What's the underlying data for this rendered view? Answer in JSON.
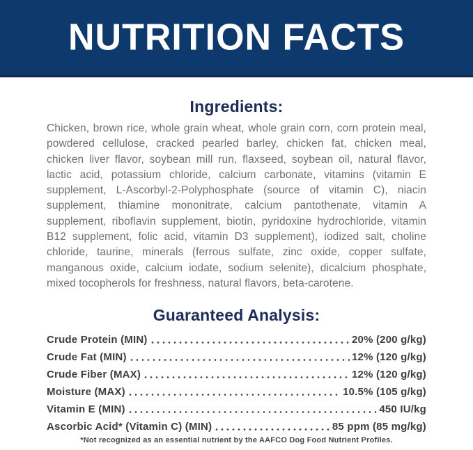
{
  "header": {
    "title": "NUTRITION FACTS"
  },
  "ingredients": {
    "heading": "Ingredients:",
    "text": "Chicken, brown rice, whole grain wheat, whole grain corn, corn protein meal, powdered cellulose, cracked pearled barley, chicken fat, chicken meal, chicken liver flavor, soybean mill run, flaxseed, soybean oil, natural flavor, lactic acid, potassium chloride, calcium carbonate, vitamins (vitamin E supplement, L-Ascorbyl-2-Polyphosphate (source of vitamin C), niacin supplement, thiamine mononitrate, calcium pantothenate, vitamin A supplement, riboflavin supplement, biotin, pyridoxine hydrochloride, vitamin B12 supplement, folic acid, vitamin D3 supplement), iodized salt, choline chloride, taurine, minerals (ferrous sulfate, zinc oxide, copper sulfate, manganous oxide, calcium iodate, sodium selenite), dicalcium phosphate, mixed tocopherols for freshness, natural flavors, beta-carotene."
  },
  "guaranteed_analysis": {
    "heading": "Guaranteed Analysis:",
    "rows": [
      {
        "label": "Crude Protein (MIN)",
        "value": "20% (200 g/kg)"
      },
      {
        "label": "Crude Fat (MIN)",
        "value": "12% (120 g/kg)"
      },
      {
        "label": "Crude Fiber (MAX)",
        "value": "12% (120 g/kg)"
      },
      {
        "label": "Moisture (MAX)",
        "value": "10.5% (105 g/kg)"
      },
      {
        "label": "Vitamin E (MIN)",
        "value": "450 IU/kg"
      },
      {
        "label": "Ascorbic Acid* (Vitamin C) (MIN)",
        "value": "85 ppm (85 mg/kg)"
      }
    ]
  },
  "footnote": "*Not recognized as an essential nutrient by the AAFCO Dog Food Nutrient Profiles.",
  "colors": {
    "banner_blue": "#0e396d",
    "banner_border": "#10294f",
    "heading_navy": "#1d2b58",
    "body_gray": "#6f6f6f",
    "analysis_text": "#3e3e3e"
  }
}
